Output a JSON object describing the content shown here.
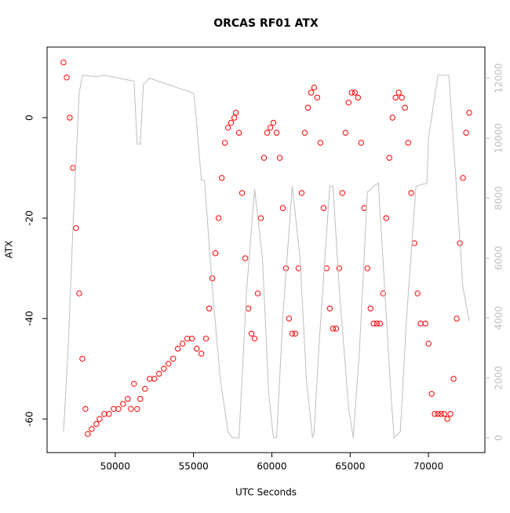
{
  "chart_data": {
    "type": "scatter",
    "title": "ORCAS RF01 ATX",
    "xlabel": "UTC Seconds",
    "ylabel": "ATX",
    "xlim": [
      45650,
      73600
    ],
    "ylim": [
      -66.7,
      14.06
    ],
    "y2lim": [
      -494,
      13040
    ],
    "xticks": [
      50000,
      55000,
      60000,
      65000,
      70000
    ],
    "yticks": [
      -60,
      -40,
      -20,
      0
    ],
    "y2ticks": [
      0,
      2000,
      4000,
      6000,
      8000,
      10000,
      12000
    ],
    "series": [
      {
        "color": "#ff0000",
        "marker": "open-circle",
        "x": [
          46700,
          46900,
          47100,
          47300,
          47500,
          47700,
          47900,
          48100,
          48250,
          48500,
          48800,
          49000,
          49300,
          49600,
          49900,
          50200,
          50500,
          50800,
          51000,
          51200,
          51400,
          51600,
          51900,
          52200,
          52500,
          52800,
          53100,
          53400,
          53700,
          54000,
          54300,
          54600,
          54900,
          55200,
          55500,
          55800,
          56000,
          56200,
          56400,
          56600,
          56800,
          57000,
          57200,
          57400,
          57600,
          57700,
          57900,
          58100,
          58300,
          58500,
          58700,
          58900,
          59100,
          59300,
          59500,
          59700,
          59900,
          60100,
          60300,
          60500,
          60700,
          60900,
          61100,
          61300,
          61500,
          61700,
          61900,
          62100,
          62300,
          62500,
          62700,
          62900,
          63100,
          63300,
          63500,
          63700,
          63900,
          64100,
          64300,
          64500,
          64700,
          64900,
          65100,
          65300,
          65500,
          65700,
          65900,
          66100,
          66300,
          66500,
          66700,
          66900,
          67100,
          67300,
          67500,
          67700,
          67900,
          68100,
          68300,
          68500,
          68700,
          68900,
          69100,
          69300,
          69500,
          69800,
          70000,
          70200,
          70400,
          70600,
          70800,
          71000,
          71200,
          71400,
          71600,
          71800,
          72000,
          72200,
          72400,
          72600
        ],
        "values": [
          11,
          8,
          0,
          -10,
          -22,
          -35,
          -48,
          -58,
          -63,
          -62,
          -61,
          -60,
          -59,
          -59,
          -58,
          -58,
          -57,
          -56,
          -58,
          -53,
          -58,
          -56,
          -54,
          -52,
          -52,
          -51,
          -50,
          -49,
          -48,
          -46,
          -45,
          -44,
          -44,
          -46,
          -47,
          -44,
          -38,
          -32,
          -27,
          -20,
          -12,
          -5,
          -2,
          -1,
          0,
          1,
          -3,
          -15,
          -28,
          -38,
          -43,
          -44,
          -35,
          -20,
          -8,
          -3,
          -2,
          -1,
          -3,
          -8,
          -18,
          -30,
          -40,
          -43,
          -43,
          -30,
          -15,
          -3,
          2,
          5,
          6,
          4,
          -5,
          -18,
          -30,
          -38,
          -42,
          -42,
          -30,
          -15,
          -3,
          3,
          5,
          5,
          4,
          -5,
          -18,
          -30,
          -38,
          -41,
          -41,
          -41,
          -35,
          -20,
          -8,
          0,
          4,
          5,
          4,
          2,
          -5,
          -15,
          -25,
          -35,
          -41,
          -41,
          -45,
          -55,
          -59,
          -59,
          -59,
          -59,
          -60,
          -59,
          -52,
          -40,
          -25,
          -12,
          -3,
          1
        ]
      },
      {
        "color": "#bebebe",
        "axis": "y2",
        "x": [
          46700,
          47000,
          47300,
          47700,
          47900,
          48800,
          49300,
          51200,
          51400,
          51600,
          51800,
          52200,
          55000,
          55100,
          55500,
          55700,
          56200,
          56700,
          57200,
          57500,
          57900,
          58400,
          58900,
          59400,
          59800,
          60100,
          60300,
          60700,
          61300,
          61800,
          62200,
          62600,
          62700,
          63000,
          63700,
          63900,
          64300,
          64900,
          65200,
          65600,
          66100,
          66500,
          66800,
          67200,
          67600,
          67800,
          68200,
          68600,
          69200,
          69900,
          70000,
          70600,
          71300,
          71700,
          72200,
          72600
        ],
        "values": [
          200,
          3000,
          7000,
          11500,
          12100,
          12050,
          12100,
          11900,
          9800,
          9800,
          11800,
          12000,
          11500,
          11100,
          8600,
          8600,
          5000,
          2000,
          200,
          0,
          0,
          5000,
          8300,
          6000,
          1500,
          0,
          0,
          4000,
          8400,
          6000,
          2000,
          0,
          200,
          3000,
          8400,
          8400,
          5000,
          1000,
          0,
          3000,
          8200,
          8400,
          8500,
          5000,
          1500,
          0,
          200,
          4000,
          8400,
          8500,
          10000,
          12100,
          12100,
          9000,
          5000,
          3900
        ]
      }
    ]
  }
}
